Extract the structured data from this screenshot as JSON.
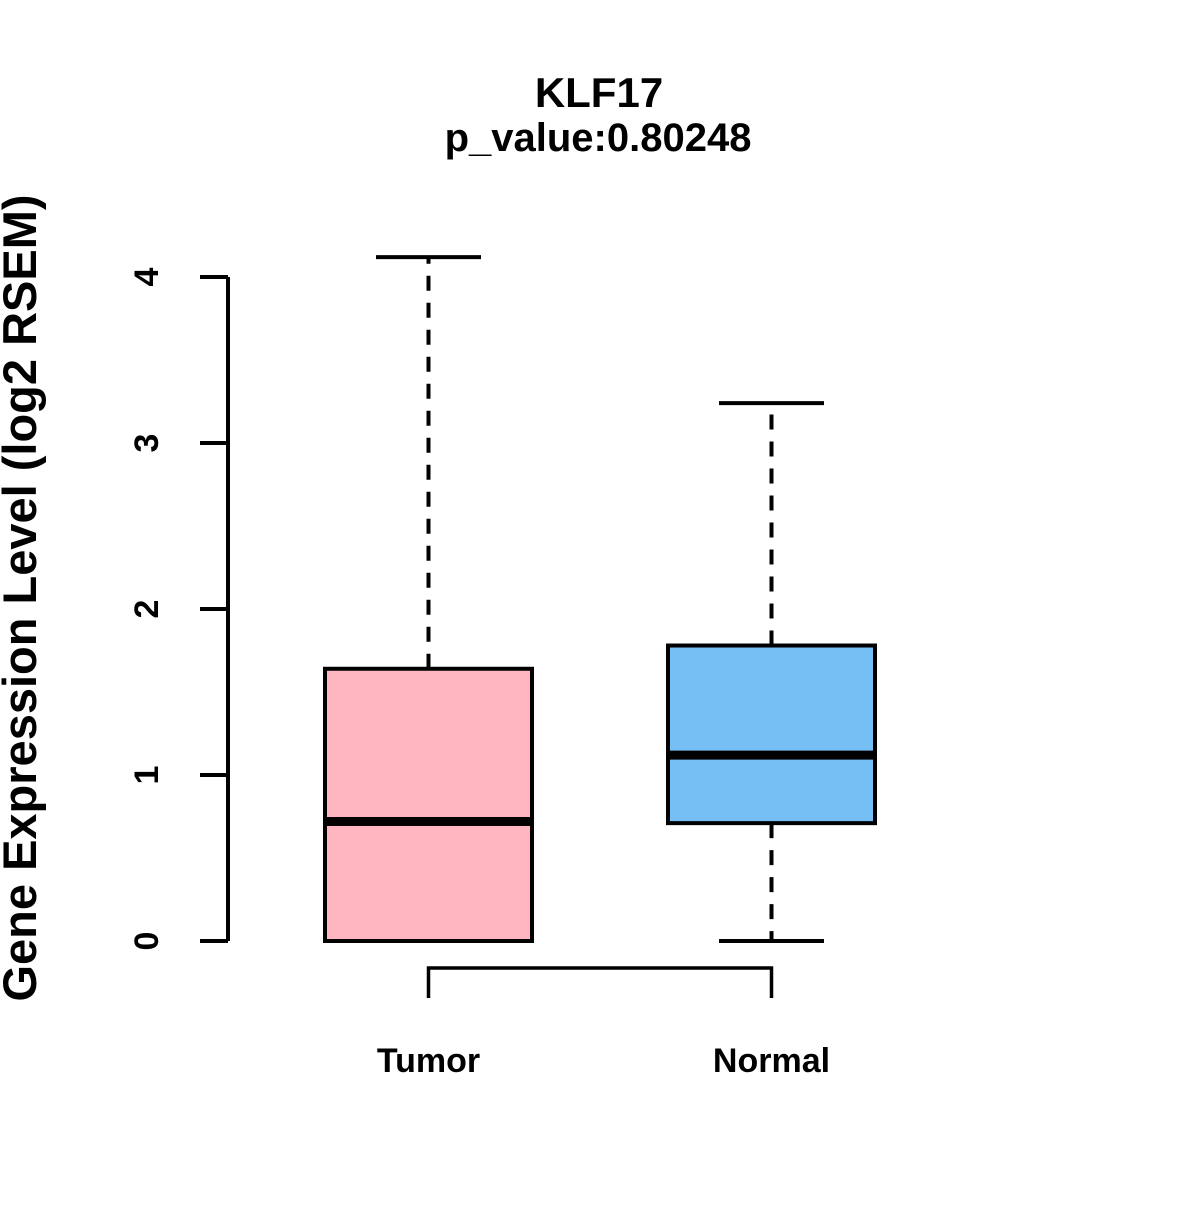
{
  "figure": {
    "title": "KLF17",
    "subtitle": "p_value:0.80248",
    "ylabel": "Gene Expression Level (log2 RSEM)"
  },
  "colors": {
    "tumor_fill": "#FFB6C1",
    "normal_fill": "#76BFF5",
    "line": "#000000",
    "background": "#FFFFFF"
  },
  "chart_data": {
    "type": "boxplot",
    "title": "KLF17",
    "subtitle": "p_value:0.80248",
    "ylabel": "Gene Expression Level (log2 RSEM)",
    "xlabel": "",
    "categories": [
      "Tumor",
      "Normal"
    ],
    "ylim": [
      0,
      4.2
    ],
    "yticks": [
      0,
      1,
      2,
      3,
      4
    ],
    "grid": false,
    "legend": false,
    "series": [
      {
        "name": "Tumor",
        "fill_color": "#FFB6C1",
        "whisker_low": 0,
        "q1": 0,
        "median": 0.72,
        "q3": 1.64,
        "whisker_high": 4.12
      },
      {
        "name": "Normal",
        "fill_color": "#76BFF5",
        "whisker_low": 0,
        "q1": 0.71,
        "median": 1.12,
        "q3": 1.78,
        "whisker_high": 3.24
      }
    ],
    "annotations": {
      "comparison_bracket": {
        "from": "Tumor",
        "to": "Normal",
        "side": "below"
      }
    }
  }
}
